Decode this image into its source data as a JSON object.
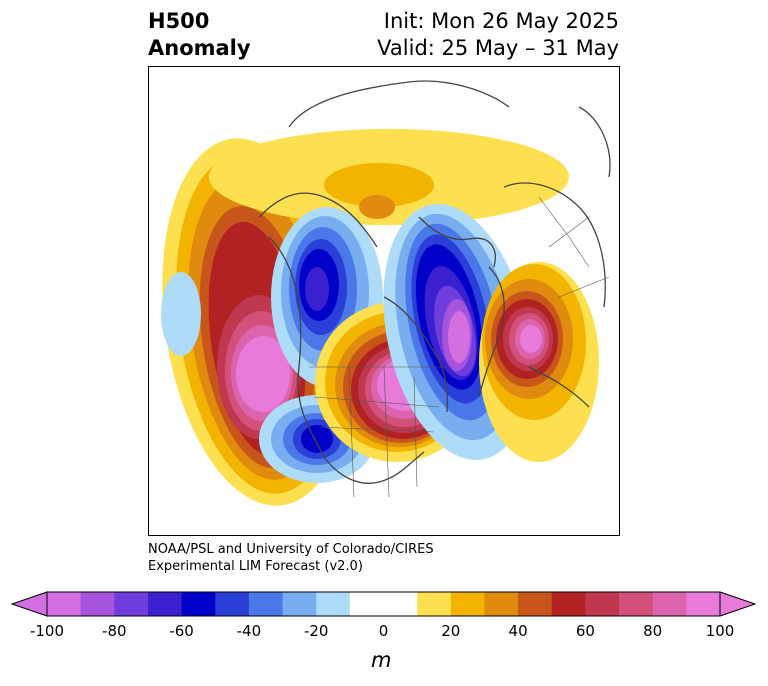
{
  "header": {
    "title_line1": "H500",
    "title_line2": "Anomaly",
    "init_text": "Init: Mon 26 May 2025",
    "valid_text": "Valid: 25 May – 31 May"
  },
  "credit": {
    "line1": "NOAA/PSL and University of Colorado/CIRES",
    "line2": "Experimental LIM Forecast (v2.0)"
  },
  "colorbar": {
    "unit": "m",
    "ticks": [
      "-100",
      "-80",
      "-60",
      "-40",
      "-20",
      "0",
      "20",
      "40",
      "60",
      "80",
      "100"
    ],
    "colors": [
      "#d36fe0",
      "#a653dd",
      "#6f3ddc",
      "#3b20d0",
      "#0000c8",
      "#2a3fd8",
      "#4a78e8",
      "#78aef0",
      "#aedcf8",
      "#ffffff",
      "#ffffff",
      "#fde050",
      "#f2b400",
      "#e08a10",
      "#c8561a",
      "#b22222",
      "#c0384f",
      "#d2507a",
      "#dc64ac",
      "#e87ada"
    ]
  },
  "map": {
    "projection": "polar-stereographic",
    "features": [
      "land",
      "coastline",
      "country-borders",
      "state-borders"
    ],
    "anomaly_centers": [
      {
        "name": "western-pacific-ridge",
        "sign": "positive"
      },
      {
        "name": "central-canada-ridge",
        "sign": "positive"
      },
      {
        "name": "western-europe-ridge",
        "sign": "positive"
      },
      {
        "name": "greenland-trough",
        "sign": "negative"
      },
      {
        "name": "alaska-trough",
        "sign": "negative"
      },
      {
        "name": "northeast-pacific-trough",
        "sign": "negative"
      }
    ]
  }
}
